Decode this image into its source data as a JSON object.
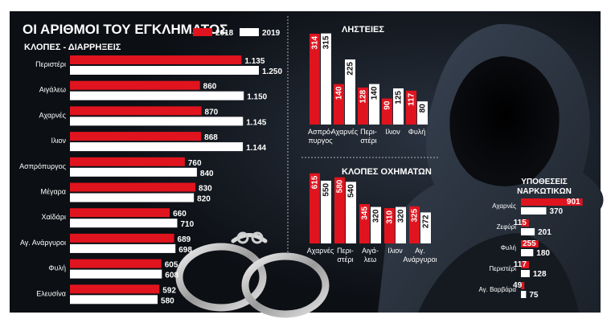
{
  "title": "ΟΙ ΑΡΙΘΜΟΙ ΤΟΥ ΕΓΚΛΗΜΑΤΟΣ",
  "colors": {
    "background": "#0c0f14",
    "bar_2018": "#e0141e",
    "bar_2019": "#ffffff",
    "text": "#ffffff"
  },
  "legend": [
    {
      "label": "2018",
      "color": "#e0141e"
    },
    {
      "label": "2019",
      "color": "#ffffff"
    }
  ],
  "chart_data": [
    {
      "type": "bar",
      "orientation": "horizontal",
      "title": "ΚΛΟΠΕΣ - ΔΙΑΡΡΗΞΕΙΣ",
      "categories": [
        "Περιστέρι",
        "Αιγάλεω",
        "Αχαρνές",
        "Ιλιον",
        "Ασπρόπυργος",
        "Μέγαρα",
        "Χαϊδάρι",
        "Αγ. Ανάργυροι",
        "Φυλή",
        "Ελευσίνα"
      ],
      "series": [
        {
          "name": "2018",
          "values": [
            1135,
            860,
            870,
            868,
            760,
            830,
            660,
            689,
            605,
            592
          ],
          "labels": [
            "1.135",
            "860",
            "870",
            "868",
            "760",
            "830",
            "660",
            "689",
            "605",
            "592"
          ]
        },
        {
          "name": "2019",
          "values": [
            1250,
            1150,
            1145,
            1144,
            840,
            820,
            710,
            698,
            608,
            580
          ],
          "labels": [
            "1.250",
            "1.150",
            "1.145",
            "1.144",
            "840",
            "820",
            "710",
            "698",
            "608",
            "580"
          ]
        }
      ]
    },
    {
      "type": "bar",
      "orientation": "vertical",
      "title": "ΛΗΣΤΕΙΕΣ",
      "categories": [
        "Ασπρό-πυργος",
        "Αχαρνές",
        "Περι-στέρι",
        "Ιλιον",
        "Φυλή"
      ],
      "series": [
        {
          "name": "2018",
          "values": [
            314,
            140,
            128,
            90,
            117
          ]
        },
        {
          "name": "2019",
          "values": [
            315,
            225,
            140,
            125,
            80
          ]
        }
      ]
    },
    {
      "type": "bar",
      "orientation": "vertical",
      "title": "ΚΛΟΠΕΣ ΟΧΗΜΑΤΩΝ",
      "categories": [
        "Αχαρνές",
        "Περι-στέρι",
        "Αιγά-λεω",
        "Ιλιον",
        "Αγ. Ανάργυροι"
      ],
      "series": [
        {
          "name": "2018",
          "values": [
            615,
            580,
            345,
            310,
            325
          ]
        },
        {
          "name": "2019",
          "values": [
            550,
            540,
            320,
            320,
            272
          ]
        }
      ]
    },
    {
      "type": "bar",
      "orientation": "horizontal",
      "title": "ΥΠΟΘΕΣΕΙΣ ΝΑΡΚΩΤΙΚΩΝ",
      "categories": [
        "Αχαρνές",
        "Ζεφύρι",
        "Φυλή",
        "Περιστέρι",
        "Αγ. Βαρβάρα"
      ],
      "series": [
        {
          "name": "2018",
          "values": [
            901,
            115,
            255,
            117,
            49
          ]
        },
        {
          "name": "2019",
          "values": [
            370,
            201,
            180,
            128,
            75
          ]
        }
      ]
    }
  ]
}
